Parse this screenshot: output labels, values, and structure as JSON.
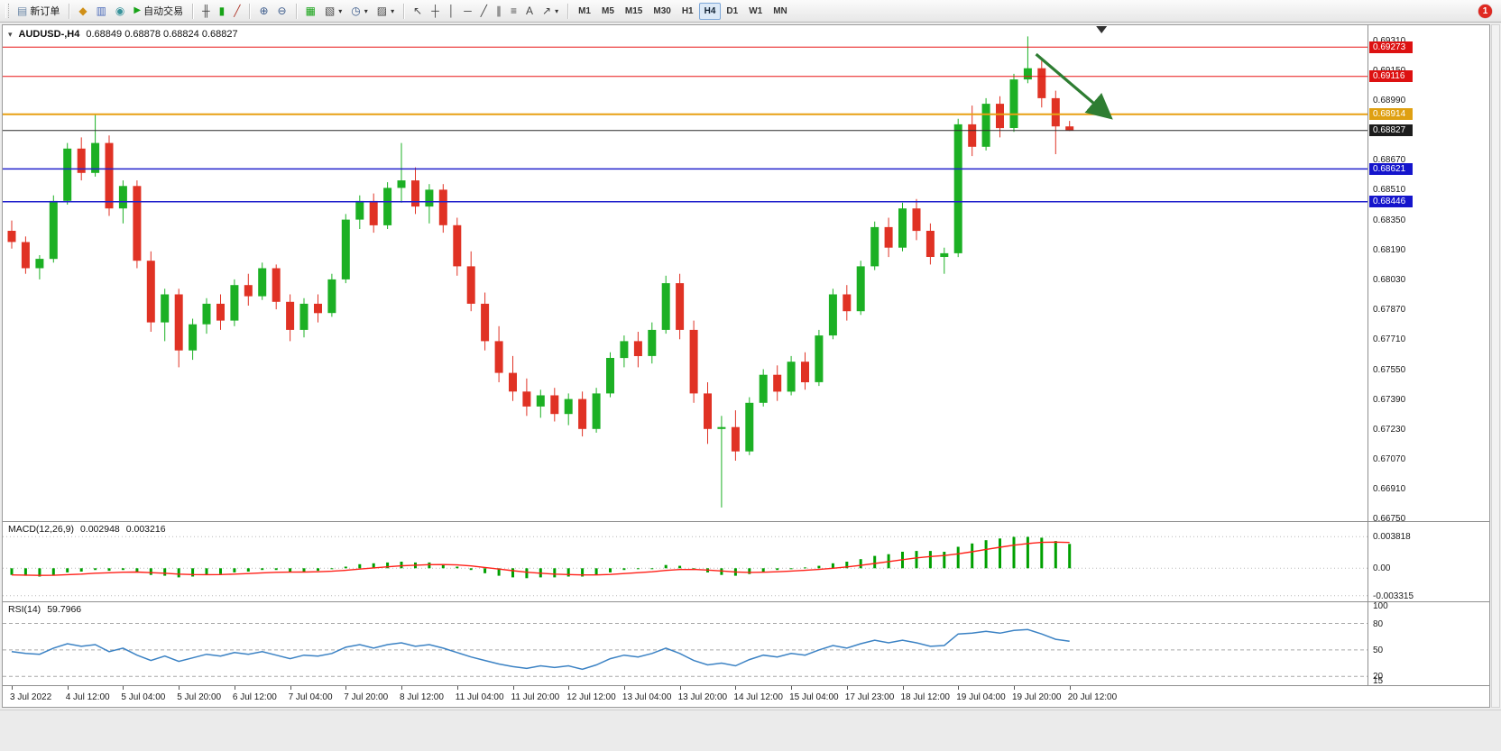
{
  "app": {
    "notification_count": "1"
  },
  "toolbar": {
    "new_order": "新订单",
    "auto_trading": "自动交易",
    "timeframes": [
      "M1",
      "M5",
      "M15",
      "M30",
      "H1",
      "H4",
      "D1",
      "W1",
      "MN"
    ],
    "active_timeframe": "H4",
    "icons": {
      "new_order": "▤",
      "symbols": "◆",
      "market_watch": "▥",
      "navigator": "◉",
      "auto_trading": "▶",
      "bar_chart": "╫",
      "candle_chart": "▮",
      "line_chart": "╱",
      "zoom_in": "⊕",
      "zoom_out": "⊖",
      "tile_windows": "▦",
      "new_chart": "▧",
      "period": "◷",
      "templates": "▨",
      "dropdown": "▾",
      "cursor": "↖",
      "crosshair": "┼",
      "vline": "│",
      "hline": "─",
      "trendline": "╱",
      "channel": "∥",
      "fibonacci": "≡",
      "text_tool": "A",
      "arrows_tool": "↗"
    }
  },
  "chart": {
    "collapse_arrow": "▾",
    "title_symbol": "AUDUSD-,H4",
    "title_ohlc": "0.68849 0.68878 0.68824 0.68827"
  },
  "chart_data": [
    {
      "type": "candlestick",
      "symbol": "AUDUSD",
      "timeframe": "H4",
      "ylim": [
        0.66737,
        0.6939
      ],
      "up_color": "#1cb024",
      "down_color": "#e03224",
      "x_label_step": 4,
      "x_labels": [
        "3 Jul 2022",
        "4 Jul 12:00",
        "5 Jul 04:00",
        "5 Jul 20:00",
        "6 Jul 12:00",
        "7 Jul 04:00",
        "7 Jul 20:00",
        "8 Jul 12:00",
        "11 Jul 04:00",
        "11 Jul 20:00",
        "12 Jul 12:00",
        "13 Jul 04:00",
        "13 Jul 20:00",
        "14 Jul 12:00",
        "15 Jul 04:00",
        "17 Jul 23:00",
        "18 Jul 12:00",
        "19 Jul 04:00",
        "19 Jul 20:00",
        "20 Jul 12:00"
      ],
      "y_axis_labels": [
        "0.69310",
        "0.69150",
        "0.68990",
        "0.68830",
        "0.68670",
        "0.68510",
        "0.68350",
        "0.68190",
        "0.68030",
        "0.67870",
        "0.67710",
        "0.67550",
        "0.67390",
        "0.67230",
        "0.67070",
        "0.66910",
        "0.66750"
      ],
      "hlines": [
        {
          "price": 0.69273,
          "label": "0.69273",
          "line_color": "#e81515",
          "badge_color": "#dd1111",
          "width": 1
        },
        {
          "price": 0.69116,
          "label": "0.69116",
          "line_color": "#e81515",
          "badge_color": "#dd1111",
          "width": 1
        },
        {
          "price": 0.68914,
          "label": "0.68914",
          "line_color": "#e8a012",
          "badge_color": "#dfa012",
          "width": 2
        },
        {
          "price": 0.68827,
          "label": "0.68827",
          "line_color": "#2b2b2b",
          "badge_color": "#1c1c1c",
          "width": 1
        },
        {
          "price": 0.68621,
          "label": "0.68621",
          "line_color": "#2222cc",
          "badge_color": "#1515cc",
          "width": 1.5
        },
        {
          "price": 0.68446,
          "label": "0.68446",
          "line_color": "#2222cc",
          "badge_color": "#1515cc",
          "width": 1.5
        }
      ],
      "trend_arrow": {
        "from_bar": 73.6,
        "from_price": 0.69235,
        "to_bar": 78.8,
        "to_price": 0.68905,
        "color": "#2e7d32"
      },
      "shift_marker_bar": 78.3,
      "candles": [
        [
          0.6829,
          0.68345,
          0.68195,
          0.6823
        ],
        [
          0.6823,
          0.6826,
          0.6806,
          0.6809
        ],
        [
          0.6809,
          0.6816,
          0.6803,
          0.6814
        ],
        [
          0.6814,
          0.6848,
          0.6812,
          0.6845
        ],
        [
          0.6845,
          0.6876,
          0.6843,
          0.6873
        ],
        [
          0.6873,
          0.6879,
          0.6856,
          0.686
        ],
        [
          0.686,
          0.6891,
          0.6858,
          0.6876
        ],
        [
          0.6876,
          0.688,
          0.6837,
          0.6841
        ],
        [
          0.6841,
          0.6856,
          0.6833,
          0.6853
        ],
        [
          0.6853,
          0.6856,
          0.6809,
          0.6813
        ],
        [
          0.6813,
          0.6818,
          0.6775,
          0.678
        ],
        [
          0.678,
          0.6798,
          0.677,
          0.6795
        ],
        [
          0.6795,
          0.6798,
          0.6756,
          0.6765
        ],
        [
          0.6765,
          0.6782,
          0.676,
          0.6779
        ],
        [
          0.6779,
          0.6793,
          0.6774,
          0.679
        ],
        [
          0.679,
          0.6795,
          0.6776,
          0.6781
        ],
        [
          0.6781,
          0.6803,
          0.6778,
          0.68
        ],
        [
          0.68,
          0.6806,
          0.6789,
          0.6794
        ],
        [
          0.6794,
          0.6812,
          0.6792,
          0.6809
        ],
        [
          0.6809,
          0.6811,
          0.6787,
          0.6791
        ],
        [
          0.6791,
          0.6795,
          0.677,
          0.6776
        ],
        [
          0.6776,
          0.6793,
          0.6772,
          0.679
        ],
        [
          0.679,
          0.6795,
          0.678,
          0.6785
        ],
        [
          0.6785,
          0.6806,
          0.6783,
          0.6803
        ],
        [
          0.6803,
          0.6838,
          0.6801,
          0.6835
        ],
        [
          0.6835,
          0.6848,
          0.683,
          0.6845
        ],
        [
          0.6845,
          0.6849,
          0.6828,
          0.6832
        ],
        [
          0.6832,
          0.6855,
          0.683,
          0.6852
        ],
        [
          0.6852,
          0.6876,
          0.6844,
          0.6856
        ],
        [
          0.6856,
          0.6863,
          0.6838,
          0.6842
        ],
        [
          0.6842,
          0.6854,
          0.6833,
          0.6851
        ],
        [
          0.6851,
          0.6854,
          0.6828,
          0.6832
        ],
        [
          0.6832,
          0.6836,
          0.6805,
          0.681
        ],
        [
          0.681,
          0.6818,
          0.6786,
          0.679
        ],
        [
          0.679,
          0.6796,
          0.6765,
          0.677
        ],
        [
          0.677,
          0.6778,
          0.6748,
          0.6753
        ],
        [
          0.6753,
          0.6762,
          0.6738,
          0.6743
        ],
        [
          0.6743,
          0.675,
          0.673,
          0.6735
        ],
        [
          0.6735,
          0.6744,
          0.6729,
          0.6741
        ],
        [
          0.6741,
          0.6745,
          0.6727,
          0.6731
        ],
        [
          0.6731,
          0.6742,
          0.6725,
          0.6739
        ],
        [
          0.6739,
          0.6743,
          0.6719,
          0.6723
        ],
        [
          0.6723,
          0.6745,
          0.6721,
          0.6742
        ],
        [
          0.6742,
          0.6764,
          0.674,
          0.6761
        ],
        [
          0.6761,
          0.6773,
          0.6756,
          0.677
        ],
        [
          0.677,
          0.6775,
          0.6756,
          0.6762
        ],
        [
          0.6762,
          0.678,
          0.6758,
          0.6776
        ],
        [
          0.6776,
          0.6805,
          0.6774,
          0.6801
        ],
        [
          0.6801,
          0.6806,
          0.6771,
          0.6776
        ],
        [
          0.6776,
          0.6781,
          0.6737,
          0.6742
        ],
        [
          0.6742,
          0.6748,
          0.6715,
          0.6723
        ],
        [
          0.6723,
          0.673,
          0.6681,
          0.6724
        ],
        [
          0.6724,
          0.6733,
          0.6706,
          0.6711
        ],
        [
          0.6711,
          0.674,
          0.6709,
          0.6737
        ],
        [
          0.6737,
          0.6755,
          0.6735,
          0.6752
        ],
        [
          0.6752,
          0.6757,
          0.6738,
          0.6743
        ],
        [
          0.6743,
          0.6762,
          0.6741,
          0.6759
        ],
        [
          0.6759,
          0.6764,
          0.6744,
          0.6748
        ],
        [
          0.6748,
          0.6776,
          0.6746,
          0.6773
        ],
        [
          0.6773,
          0.6798,
          0.6771,
          0.6795
        ],
        [
          0.6795,
          0.68,
          0.6781,
          0.6786
        ],
        [
          0.6786,
          0.6813,
          0.6784,
          0.681
        ],
        [
          0.681,
          0.6834,
          0.6808,
          0.6831
        ],
        [
          0.6831,
          0.6836,
          0.6815,
          0.682
        ],
        [
          0.682,
          0.6844,
          0.6818,
          0.6841
        ],
        [
          0.6841,
          0.6846,
          0.6824,
          0.6829
        ],
        [
          0.6829,
          0.6833,
          0.6811,
          0.6815
        ],
        [
          0.6815,
          0.682,
          0.6806,
          0.6817
        ],
        [
          0.6817,
          0.6889,
          0.6815,
          0.6886
        ],
        [
          0.6886,
          0.6896,
          0.6869,
          0.6874
        ],
        [
          0.6874,
          0.69,
          0.6872,
          0.6897
        ],
        [
          0.6897,
          0.6901,
          0.6879,
          0.6884
        ],
        [
          0.6884,
          0.6913,
          0.6882,
          0.691
        ],
        [
          0.691,
          0.6933,
          0.6908,
          0.6916
        ],
        [
          0.6916,
          0.692,
          0.6895,
          0.69
        ],
        [
          0.69,
          0.6904,
          0.687,
          0.68849
        ],
        [
          0.68849,
          0.68878,
          0.68824,
          0.68827
        ]
      ]
    },
    {
      "type": "macd",
      "label": "MACD(12,26,9)",
      "macd_value": "0.002948",
      "signal_value": "0.003216",
      "ylim_top": 0.0056,
      "ylim_bottom": -0.004,
      "signal_period": 9,
      "histogram_color": "#00a000",
      "signal_color": "#ff2018",
      "y_axis_labels": [
        {
          "value": 0.003818,
          "label": "0.003818"
        },
        {
          "value": 0,
          "label": "0.00"
        },
        {
          "value": -0.003315,
          "label": "-0.003315"
        }
      ],
      "histogram": [
        -0.0008,
        -0.0009,
        -0.001,
        -0.0008,
        -0.0005,
        -0.0004,
        -0.0002,
        -0.0003,
        -0.0002,
        -0.0004,
        -0.0008,
        -0.0009,
        -0.0011,
        -0.001,
        -0.0008,
        -0.0007,
        -0.0005,
        -0.0004,
        -0.0002,
        -0.0002,
        -0.0004,
        -0.0004,
        -0.0003,
        -0.0001,
        0.0002,
        0.0005,
        0.0006,
        0.0007,
        0.0008,
        0.0007,
        0.0007,
        0.0005,
        0.0002,
        -0.0002,
        -0.0006,
        -0.0009,
        -0.0011,
        -0.0012,
        -0.0011,
        -0.0011,
        -0.001,
        -0.001,
        -0.0008,
        -0.0005,
        -0.0002,
        -0.0001,
        0.0,
        0.0004,
        0.0003,
        -0.0001,
        -0.0005,
        -0.0008,
        -0.0009,
        -0.0007,
        -0.0004,
        -0.0002,
        0.0,
        0.0001,
        0.0003,
        0.0006,
        0.0008,
        0.0011,
        0.0015,
        0.0017,
        0.002,
        0.0021,
        0.0021,
        0.002,
        0.0026,
        0.003,
        0.0034,
        0.0036,
        0.0038,
        0.0038,
        0.0037,
        0.0033,
        0.002948
      ]
    },
    {
      "type": "rsi",
      "label": "RSI(14)",
      "value": "59.7966",
      "ylim_top": 104,
      "ylim_bottom": 10,
      "levels": [
        80,
        50,
        20
      ],
      "line_color": "#3b82c4",
      "y_axis_labels": [
        {
          "value": 100,
          "label": "100"
        },
        {
          "value": 80,
          "label": "80"
        },
        {
          "value": 50,
          "label": "50"
        },
        {
          "value": 20,
          "label": "20"
        },
        {
          "value": 15,
          "label": "15"
        }
      ],
      "values": [
        48,
        46,
        45,
        52,
        57,
        54,
        56,
        48,
        52,
        44,
        38,
        43,
        37,
        41,
        45,
        43,
        47,
        45,
        48,
        44,
        40,
        44,
        43,
        46,
        53,
        56,
        52,
        56,
        58,
        54,
        56,
        52,
        47,
        42,
        38,
        34,
        31,
        29,
        32,
        30,
        32,
        28,
        33,
        40,
        44,
        42,
        46,
        52,
        46,
        38,
        33,
        35,
        32,
        39,
        44,
        42,
        46,
        44,
        50,
        55,
        52,
        57,
        61,
        58,
        61,
        58,
        54,
        55,
        68,
        69,
        71,
        69,
        72,
        73,
        68,
        62,
        59.7966
      ]
    }
  ]
}
